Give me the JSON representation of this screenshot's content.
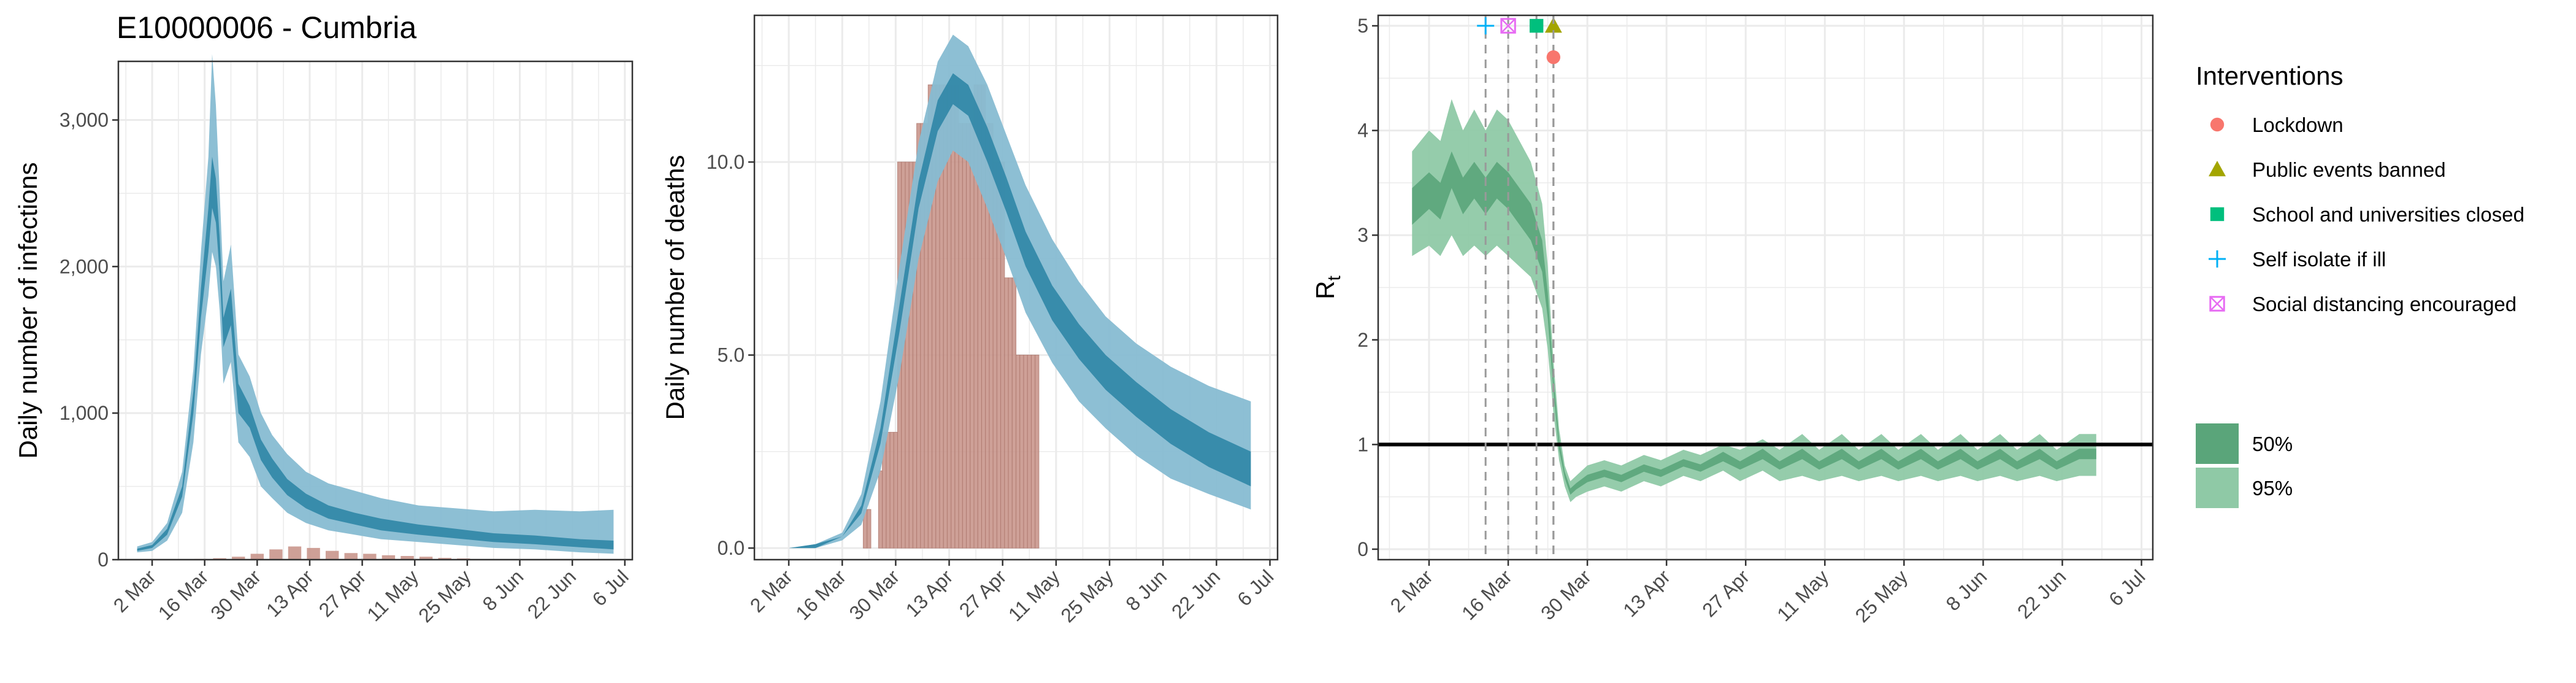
{
  "title": "E10000006 - Cumbria",
  "x_tick_labels": [
    "2 Mar",
    "16 Mar",
    "30 Mar",
    "13 Apr",
    "27 Apr",
    "11 May",
    "25 May",
    "8 Jun",
    "22 Jun",
    "6 Jul"
  ],
  "colors": {
    "band95_blue": "#87bcd2",
    "band50_blue": "#2f86a6",
    "bars": "#c9968c",
    "band95_green": "#8fc9a6",
    "band50_green": "#5aa57a",
    "line_green": "#3a8a5a",
    "grid": "#ebebeb",
    "panel_border": "#333333",
    "lockdown": "#f8766d",
    "public_events": "#a3a500",
    "schools": "#00bf7d",
    "self_isolate": "#00b0f6",
    "social_distancing": "#e76bf3"
  },
  "legend": {
    "interventions_title": "Interventions",
    "interventions": [
      {
        "label": "Lockdown",
        "icon": "circle"
      },
      {
        "label": "Public events banned",
        "icon": "triangle"
      },
      {
        "label": "School and universities closed",
        "icon": "square"
      },
      {
        "label": "Self isolate if ill",
        "icon": "plus"
      },
      {
        "label": "Social distancing encouraged",
        "icon": "square-x"
      }
    ],
    "bands": [
      {
        "label": "50%"
      },
      {
        "label": "95%"
      }
    ]
  },
  "chart_data": [
    {
      "type": "area",
      "ylabel": "Daily number of infections",
      "ylim": [
        0,
        3400
      ],
      "y_ticks": [
        0,
        1000,
        2000,
        3000
      ],
      "y_tick_labels": [
        "0",
        "1,000",
        "2,000",
        "3,000"
      ],
      "x_range": [
        "2020-02-22",
        "2020-07-08"
      ],
      "grid": true,
      "series": [
        {
          "name": "95%",
          "x": [
            "2020-02-27",
            "2020-03-02",
            "2020-03-06",
            "2020-03-10",
            "2020-03-13",
            "2020-03-15",
            "2020-03-17",
            "2020-03-18",
            "2020-03-19",
            "2020-03-20",
            "2020-03-21",
            "2020-03-23",
            "2020-03-25",
            "2020-03-28",
            "2020-03-31",
            "2020-04-03",
            "2020-04-07",
            "2020-04-12",
            "2020-04-18",
            "2020-04-25",
            "2020-05-02",
            "2020-05-12",
            "2020-05-22",
            "2020-06-01",
            "2020-06-12",
            "2020-06-24",
            "2020-07-03"
          ],
          "lower": [
            50,
            60,
            130,
            320,
            800,
            1400,
            1800,
            2100,
            2000,
            1700,
            1200,
            1350,
            800,
            700,
            500,
            420,
            320,
            250,
            200,
            170,
            140,
            120,
            100,
            80,
            70,
            50,
            40
          ],
          "upper": [
            90,
            120,
            250,
            600,
            1300,
            2100,
            2750,
            3450,
            3100,
            2500,
            1900,
            2150,
            1400,
            1250,
            1000,
            850,
            720,
            600,
            520,
            470,
            420,
            370,
            350,
            330,
            340,
            330,
            340
          ]
        },
        {
          "name": "50%",
          "x": [
            "2020-02-27",
            "2020-03-02",
            "2020-03-06",
            "2020-03-10",
            "2020-03-13",
            "2020-03-15",
            "2020-03-17",
            "2020-03-18",
            "2020-03-19",
            "2020-03-20",
            "2020-03-21",
            "2020-03-23",
            "2020-03-25",
            "2020-03-28",
            "2020-03-31",
            "2020-04-03",
            "2020-04-07",
            "2020-04-12",
            "2020-04-18",
            "2020-04-25",
            "2020-05-02",
            "2020-05-12",
            "2020-05-22",
            "2020-06-01",
            "2020-06-12",
            "2020-06-24",
            "2020-07-03"
          ],
          "lower": [
            60,
            80,
            170,
            430,
            1000,
            1650,
            2100,
            2400,
            2300,
            1950,
            1450,
            1600,
            1000,
            900,
            680,
            560,
            440,
            350,
            280,
            240,
            200,
            170,
            145,
            120,
            105,
            85,
            70
          ],
          "upper": [
            75,
            100,
            210,
            500,
            1150,
            1850,
            2400,
            2750,
            2600,
            2200,
            1650,
            1850,
            1200,
            1050,
            820,
            690,
            550,
            450,
            370,
            320,
            280,
            240,
            210,
            180,
            165,
            140,
            130
          ]
        }
      ],
      "bars": {
        "x": [
          "2020-03-15",
          "2020-03-20",
          "2020-03-25",
          "2020-03-30",
          "2020-04-04",
          "2020-04-09",
          "2020-04-14",
          "2020-04-19",
          "2020-04-24",
          "2020-04-29",
          "2020-05-04",
          "2020-05-09",
          "2020-05-14",
          "2020-05-19",
          "2020-05-24"
        ],
        "values": [
          5,
          10,
          20,
          40,
          70,
          90,
          80,
          60,
          45,
          40,
          30,
          25,
          20,
          12,
          8
        ]
      }
    },
    {
      "type": "area",
      "ylabel": "Daily number of deaths",
      "ylim": [
        -0.3,
        13.8
      ],
      "y_ticks": [
        0,
        5,
        10
      ],
      "y_tick_labels": [
        "0.0",
        "5.0",
        "10.0"
      ],
      "x_range": [
        "2020-02-22",
        "2020-07-08"
      ],
      "grid": true,
      "series": [
        {
          "name": "95%",
          "x": [
            "2020-03-02",
            "2020-03-09",
            "2020-03-16",
            "2020-03-21",
            "2020-03-26",
            "2020-03-31",
            "2020-04-05",
            "2020-04-10",
            "2020-04-14",
            "2020-04-18",
            "2020-04-23",
            "2020-04-28",
            "2020-05-03",
            "2020-05-10",
            "2020-05-17",
            "2020-05-24",
            "2020-06-01",
            "2020-06-10",
            "2020-06-20",
            "2020-07-01"
          ],
          "lower": [
            0,
            0,
            0.2,
            0.6,
            2.0,
            4.5,
            7.5,
            9.5,
            10.3,
            10.0,
            8.8,
            7.5,
            6.1,
            4.8,
            3.8,
            3.1,
            2.4,
            1.8,
            1.4,
            1.0
          ],
          "upper": [
            0,
            0.1,
            0.4,
            1.4,
            3.8,
            7.3,
            10.5,
            12.6,
            13.3,
            13.0,
            12.0,
            10.7,
            9.4,
            8.0,
            6.9,
            6.0,
            5.3,
            4.7,
            4.2,
            3.8
          ]
        },
        {
          "name": "50%",
          "x": [
            "2020-03-02",
            "2020-03-09",
            "2020-03-16",
            "2020-03-21",
            "2020-03-26",
            "2020-03-31",
            "2020-04-05",
            "2020-04-10",
            "2020-04-14",
            "2020-04-18",
            "2020-04-23",
            "2020-04-28",
            "2020-05-03",
            "2020-05-10",
            "2020-05-17",
            "2020-05-24",
            "2020-06-01",
            "2020-06-10",
            "2020-06-20",
            "2020-07-01"
          ],
          "lower": [
            0,
            0,
            0.3,
            0.9,
            2.7,
            5.6,
            8.8,
            10.8,
            11.5,
            11.2,
            10.0,
            8.7,
            7.3,
            5.9,
            4.9,
            4.1,
            3.4,
            2.7,
            2.1,
            1.6
          ],
          "upper": [
            0,
            0.1,
            0.3,
            1.1,
            3.1,
            6.3,
            9.5,
            11.6,
            12.3,
            12.0,
            10.9,
            9.6,
            8.2,
            6.8,
            5.8,
            5.0,
            4.3,
            3.6,
            3.0,
            2.5
          ]
        }
      ],
      "bars": {
        "x": [
          "2020-03-22",
          "2020-03-23",
          "2020-03-24",
          "2020-03-26",
          "2020-03-27",
          "2020-03-28",
          "2020-03-29",
          "2020-03-30",
          "2020-03-31",
          "2020-04-01",
          "2020-04-02",
          "2020-04-03",
          "2020-04-04",
          "2020-04-05",
          "2020-04-06",
          "2020-04-07",
          "2020-04-08",
          "2020-04-09",
          "2020-04-10",
          "2020-04-11",
          "2020-04-12",
          "2020-04-13",
          "2020-04-14",
          "2020-04-15",
          "2020-04-16",
          "2020-04-17",
          "2020-04-18",
          "2020-04-19",
          "2020-04-20",
          "2020-04-21",
          "2020-04-22",
          "2020-04-23",
          "2020-04-24",
          "2020-04-25",
          "2020-04-26",
          "2020-04-27",
          "2020-04-28",
          "2020-04-29",
          "2020-04-30",
          "2020-05-01",
          "2020-05-02",
          "2020-05-03",
          "2020-05-04",
          "2020-05-05",
          "2020-05-06"
        ],
        "values": [
          1,
          1,
          0,
          2,
          3,
          3,
          3,
          3,
          10,
          10,
          10,
          10,
          10,
          11,
          11,
          11,
          12,
          12,
          12,
          12,
          12,
          12,
          12,
          12,
          11,
          11,
          11,
          11,
          12,
          12,
          12,
          11,
          11,
          10,
          10,
          10,
          7,
          7,
          7,
          5,
          5,
          5,
          5,
          5,
          5
        ]
      }
    },
    {
      "type": "line",
      "ylabel": "R",
      "ylabel_subscript": "t",
      "ylim": [
        -0.1,
        5.1
      ],
      "y_ticks": [
        0,
        1,
        2,
        3,
        4,
        5
      ],
      "y_tick_labels": [
        "0",
        "1",
        "2",
        "3",
        "4",
        "5"
      ],
      "x_range": [
        "2020-02-22",
        "2020-07-08"
      ],
      "grid": true,
      "reference_line": 1,
      "series": [
        {
          "name": "95%",
          "x": [
            "2020-02-28",
            "2020-03-02",
            "2020-03-04",
            "2020-03-06",
            "2020-03-08",
            "2020-03-10",
            "2020-03-12",
            "2020-03-14",
            "2020-03-16",
            "2020-03-18",
            "2020-03-20",
            "2020-03-22",
            "2020-03-23",
            "2020-03-24",
            "2020-03-25",
            "2020-03-26",
            "2020-03-27",
            "2020-03-28",
            "2020-03-30",
            "2020-04-02",
            "2020-04-05",
            "2020-04-09",
            "2020-04-12",
            "2020-04-16",
            "2020-04-19",
            "2020-04-23",
            "2020-04-26",
            "2020-04-30",
            "2020-05-03",
            "2020-05-07",
            "2020-05-10",
            "2020-05-14",
            "2020-05-17",
            "2020-05-21",
            "2020-05-24",
            "2020-05-28",
            "2020-05-31",
            "2020-06-04",
            "2020-06-07",
            "2020-06-11",
            "2020-06-14",
            "2020-06-18",
            "2020-06-21",
            "2020-06-25",
            "2020-06-28"
          ],
          "lower": [
            2.8,
            2.9,
            2.8,
            3.0,
            2.8,
            2.9,
            2.8,
            2.9,
            2.8,
            2.7,
            2.6,
            2.3,
            1.9,
            1.3,
            0.85,
            0.6,
            0.45,
            0.5,
            0.55,
            0.6,
            0.55,
            0.65,
            0.6,
            0.7,
            0.65,
            0.75,
            0.65,
            0.75,
            0.65,
            0.7,
            0.65,
            0.7,
            0.65,
            0.7,
            0.65,
            0.7,
            0.65,
            0.7,
            0.65,
            0.7,
            0.65,
            0.7,
            0.65,
            0.7,
            0.7
          ],
          "upper": [
            3.8,
            4.0,
            3.9,
            4.3,
            4.0,
            4.2,
            4.0,
            4.2,
            4.1,
            3.9,
            3.7,
            3.3,
            2.7,
            1.8,
            1.15,
            0.8,
            0.65,
            0.7,
            0.8,
            0.85,
            0.8,
            0.9,
            0.85,
            0.95,
            0.9,
            1.0,
            0.95,
            1.05,
            0.95,
            1.1,
            0.95,
            1.1,
            0.95,
            1.1,
            0.95,
            1.1,
            0.95,
            1.1,
            0.95,
            1.1,
            0.95,
            1.1,
            0.95,
            1.1,
            1.1
          ]
        },
        {
          "name": "50%",
          "x": [
            "2020-02-28",
            "2020-03-02",
            "2020-03-04",
            "2020-03-06",
            "2020-03-08",
            "2020-03-10",
            "2020-03-12",
            "2020-03-14",
            "2020-03-16",
            "2020-03-18",
            "2020-03-20",
            "2020-03-22",
            "2020-03-23",
            "2020-03-24",
            "2020-03-25",
            "2020-03-26",
            "2020-03-27",
            "2020-03-28",
            "2020-03-30",
            "2020-04-02",
            "2020-04-05",
            "2020-04-09",
            "2020-04-12",
            "2020-04-16",
            "2020-04-19",
            "2020-04-23",
            "2020-04-26",
            "2020-04-30",
            "2020-05-03",
            "2020-05-07",
            "2020-05-10",
            "2020-05-14",
            "2020-05-17",
            "2020-05-21",
            "2020-05-24",
            "2020-05-28",
            "2020-05-31",
            "2020-06-04",
            "2020-06-07",
            "2020-06-11",
            "2020-06-14",
            "2020-06-18",
            "2020-06-21",
            "2020-06-25",
            "2020-06-28"
          ],
          "lower": [
            3.1,
            3.25,
            3.15,
            3.45,
            3.2,
            3.35,
            3.2,
            3.35,
            3.25,
            3.1,
            2.95,
            2.65,
            2.2,
            1.5,
            0.95,
            0.68,
            0.52,
            0.57,
            0.64,
            0.69,
            0.64,
            0.74,
            0.69,
            0.79,
            0.74,
            0.84,
            0.76,
            0.86,
            0.76,
            0.86,
            0.76,
            0.86,
            0.76,
            0.86,
            0.76,
            0.86,
            0.76,
            0.86,
            0.76,
            0.86,
            0.76,
            0.86,
            0.76,
            0.86,
            0.86
          ],
          "upper": [
            3.45,
            3.6,
            3.5,
            3.8,
            3.55,
            3.7,
            3.55,
            3.7,
            3.6,
            3.45,
            3.3,
            2.95,
            2.45,
            1.65,
            1.05,
            0.74,
            0.58,
            0.63,
            0.71,
            0.76,
            0.71,
            0.81,
            0.76,
            0.86,
            0.81,
            0.93,
            0.84,
            0.96,
            0.84,
            0.96,
            0.84,
            0.96,
            0.84,
            0.96,
            0.84,
            0.96,
            0.84,
            0.96,
            0.84,
            0.96,
            0.84,
            0.96,
            0.84,
            0.96,
            0.96
          ]
        }
      ],
      "interventions": [
        {
          "label": "Self isolate if ill",
          "date": "2020-03-12"
        },
        {
          "label": "Social distancing encouraged",
          "date": "2020-03-16"
        },
        {
          "label": "School and universities closed",
          "date": "2020-03-21"
        },
        {
          "label": "Public events banned",
          "date": "2020-03-24"
        },
        {
          "label": "Lockdown",
          "date": "2020-03-24"
        }
      ]
    }
  ]
}
